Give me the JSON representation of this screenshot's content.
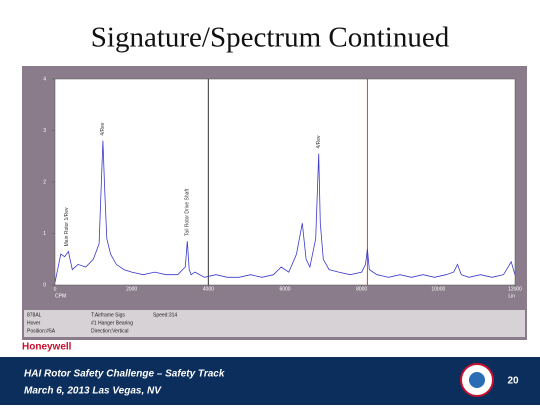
{
  "slide": {
    "title": "Signature/Spectrum Continued",
    "brand": "Honeywell",
    "footer_line1": "HAI Rotor Safety Challenge – Safety Track",
    "footer_line2": "March 6, 2013 Las Vegas, NV",
    "page_number": "20"
  },
  "info_panel": [
    [
      "878AL",
      "Hover",
      "Position:#5A"
    ],
    [
      "T:Airframe Sigs",
      "#1 Hanger Bearing",
      "Direction:Vertical"
    ],
    [
      "Speed:314"
    ]
  ],
  "chart_data": {
    "type": "line",
    "xlabel": "CPM",
    "scale_label": "Lin",
    "xlim": [
      0,
      12000
    ],
    "xticks": [
      0,
      2000,
      4000,
      6000,
      8000,
      10000,
      12000
    ],
    "ylim": [
      0,
      4
    ],
    "yticks": [
      0,
      1,
      2,
      3,
      4
    ],
    "x": [
      0,
      150,
      250,
      350,
      450,
      600,
      800,
      1000,
      1150,
      1250,
      1300,
      1350,
      1450,
      1600,
      1800,
      2000,
      2300,
      2600,
      2900,
      3200,
      3400,
      3450,
      3500,
      3550,
      3650,
      3900,
      4200,
      4500,
      4800,
      5100,
      5400,
      5700,
      5900,
      6100,
      6300,
      6450,
      6550,
      6650,
      6800,
      6880,
      6920,
      7000,
      7150,
      7400,
      7700,
      8000,
      8100,
      8150,
      8200,
      8400,
      8700,
      9000,
      9300,
      9600,
      9900,
      10200,
      10400,
      10500,
      10600,
      10800,
      11100,
      11400,
      11700,
      11900,
      12000
    ],
    "series": [
      {
        "color": "#3a3ac8",
        "values": [
          0.05,
          0.6,
          0.55,
          0.65,
          0.3,
          0.4,
          0.35,
          0.5,
          0.8,
          2.8,
          1.8,
          0.9,
          0.6,
          0.4,
          0.3,
          0.25,
          0.2,
          0.25,
          0.2,
          0.2,
          0.35,
          0.85,
          0.3,
          0.2,
          0.25,
          0.15,
          0.2,
          0.15,
          0.15,
          0.2,
          0.15,
          0.2,
          0.35,
          0.25,
          0.6,
          1.2,
          0.5,
          0.35,
          0.9,
          2.55,
          1.2,
          0.5,
          0.3,
          0.25,
          0.2,
          0.25,
          0.4,
          0.7,
          0.3,
          0.2,
          0.15,
          0.2,
          0.15,
          0.2,
          0.15,
          0.2,
          0.25,
          0.4,
          0.2,
          0.15,
          0.2,
          0.15,
          0.2,
          0.45,
          0.2
        ]
      }
    ],
    "cursor_lines": [
      {
        "x": 4000,
        "color": "#333333"
      },
      {
        "x": 8150,
        "color": "#e0401a"
      }
    ],
    "annotations": [
      {
        "text": "Main Rotor 1/Rev",
        "x": 300,
        "y": 0.75
      },
      {
        "text": "4/Rev",
        "x": 1250,
        "y": 2.9
      },
      {
        "text": "Tail Rotor Drive Shaft",
        "x": 3450,
        "y": 0.95
      },
      {
        "text": "4/Rev",
        "x": 6880,
        "y": 2.65
      }
    ]
  }
}
